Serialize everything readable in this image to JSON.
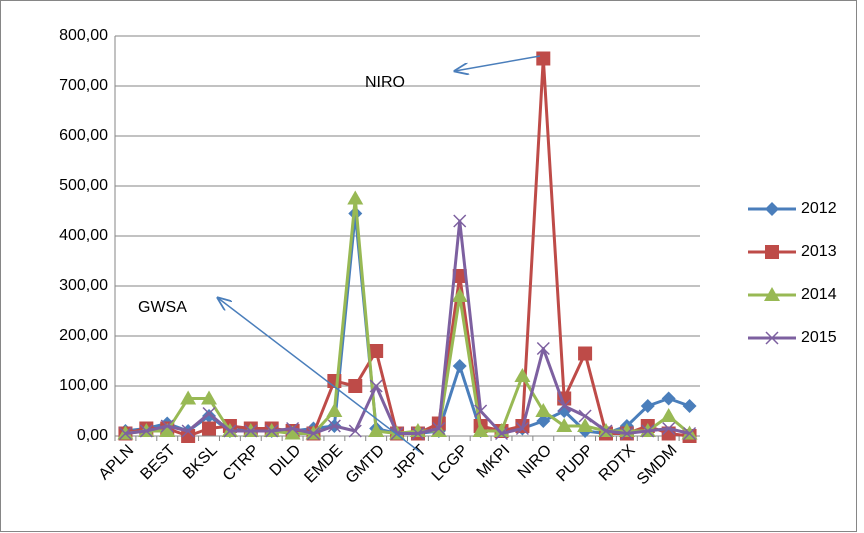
{
  "chart_data": {
    "type": "line",
    "categories": [
      "APLN",
      null,
      "BEST",
      null,
      "BKSL",
      null,
      "CTRP",
      null,
      "DILD",
      null,
      "EMDE",
      null,
      "GMTD",
      null,
      "JRPT",
      null,
      "LCGP",
      null,
      "MKPI",
      null,
      "NIRO",
      null,
      "PUDP",
      null,
      "RDTX",
      null,
      "SMDM",
      null
    ],
    "series": [
      {
        "name": "2012",
        "color": "#4a7ebb",
        "marker": "diamond",
        "values": [
          10,
          15,
          25,
          10,
          40,
          10,
          15,
          10,
          10,
          15,
          20,
          445,
          15,
          5,
          5,
          10,
          140,
          10,
          10,
          15,
          30,
          50,
          10,
          5,
          20,
          60,
          75,
          60
        ]
      },
      {
        "name": "2013",
        "color": "#be4b48",
        "marker": "square",
        "values": [
          5,
          15,
          15,
          0,
          15,
          20,
          15,
          15,
          10,
          5,
          110,
          100,
          170,
          5,
          5,
          25,
          320,
          20,
          10,
          20,
          755,
          75,
          165,
          5,
          5,
          20,
          5,
          0
        ]
      },
      {
        "name": "2014",
        "color": "#98b954",
        "marker": "triangle",
        "values": [
          5,
          10,
          10,
          75,
          75,
          10,
          10,
          10,
          5,
          5,
          50,
          475,
          10,
          5,
          10,
          10,
          280,
          10,
          10,
          120,
          50,
          20,
          20,
          10,
          10,
          10,
          40,
          5
        ]
      },
      {
        "name": "2015",
        "color": "#7d60a0",
        "marker": "x",
        "values": [
          5,
          10,
          20,
          10,
          45,
          10,
          10,
          10,
          15,
          5,
          20,
          10,
          100,
          5,
          5,
          15,
          430,
          50,
          5,
          15,
          175,
          60,
          40,
          10,
          5,
          10,
          15,
          5
        ]
      }
    ],
    "ylim": [
      0,
      800
    ],
    "yticks": [
      {
        "value": 0,
        "label": "0,00"
      },
      {
        "value": 100,
        "label": "100,00"
      },
      {
        "value": 200,
        "label": "200,00"
      },
      {
        "value": 300,
        "label": "300,00"
      },
      {
        "value": 400,
        "label": "400,00"
      },
      {
        "value": 500,
        "label": "500,00"
      },
      {
        "value": 600,
        "label": "600,00"
      },
      {
        "value": 700,
        "label": "700,00"
      },
      {
        "value": 800,
        "label": "800,00"
      }
    ],
    "grid": true,
    "legend": "right",
    "annotations": [
      "NIRO",
      "GWSA"
    ]
  }
}
